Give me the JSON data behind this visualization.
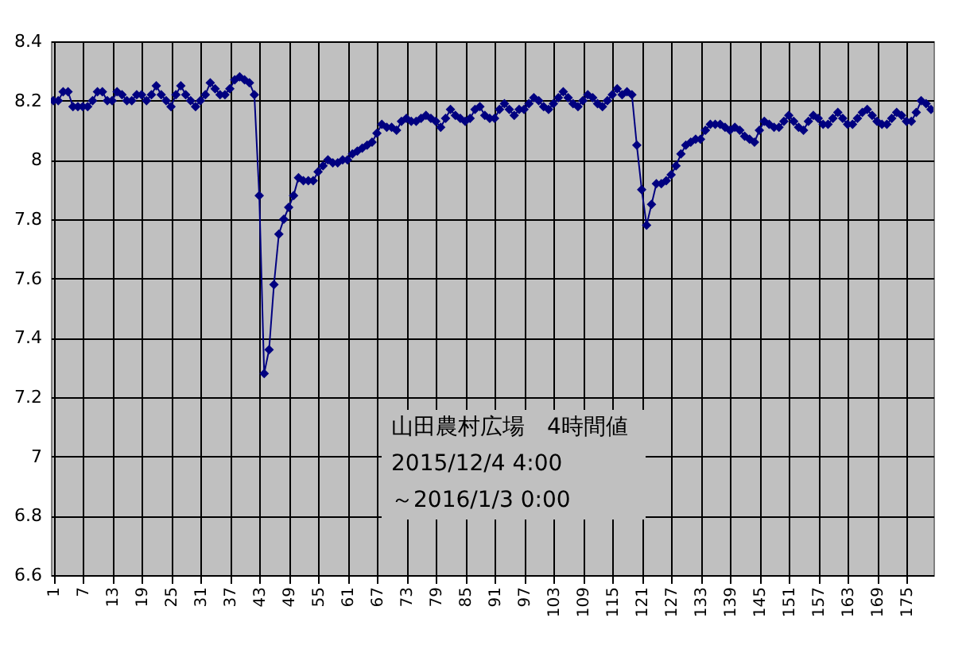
{
  "chart_data": {
    "type": "line",
    "marker": "diamond",
    "line_style": "solid",
    "grid": true,
    "categories": [
      "1",
      null,
      null,
      null,
      null,
      null,
      "7",
      null,
      null,
      null,
      null,
      null,
      "13",
      null,
      null,
      null,
      null,
      null,
      "19",
      null,
      null,
      null,
      null,
      null,
      "25",
      null,
      null,
      null,
      null,
      null,
      "31",
      null,
      null,
      null,
      null,
      null,
      "37",
      null,
      null,
      null,
      null,
      null,
      "43",
      null,
      null,
      null,
      null,
      null,
      "49",
      null,
      null,
      null,
      null,
      null,
      "55",
      null,
      null,
      null,
      null,
      null,
      "61",
      null,
      null,
      null,
      null,
      null,
      "67",
      null,
      null,
      null,
      null,
      null,
      "73",
      null,
      null,
      null,
      null,
      null,
      "79",
      null,
      null,
      null,
      null,
      null,
      "85",
      null,
      null,
      null,
      null,
      null,
      "91",
      null,
      null,
      null,
      null,
      null,
      "97",
      null,
      null,
      null,
      null,
      null,
      "103",
      null,
      null,
      null,
      null,
      null,
      "109",
      null,
      null,
      null,
      null,
      null,
      "115",
      null,
      null,
      null,
      null,
      null,
      "121",
      null,
      null,
      null,
      null,
      null,
      "127",
      null,
      null,
      null,
      null,
      null,
      "133",
      null,
      null,
      null,
      null,
      null,
      "139",
      null,
      null,
      null,
      null,
      null,
      "145",
      null,
      null,
      null,
      null,
      null,
      "151",
      null,
      null,
      null,
      null,
      null,
      "157",
      null,
      null,
      null,
      null,
      null,
      "163",
      null,
      null,
      null,
      null,
      null,
      "169",
      null,
      null,
      null,
      null,
      null,
      "175",
      null,
      null,
      null,
      null,
      null
    ],
    "ylim": [
      6.6,
      8.4
    ],
    "yticks": [
      6.6,
      6.8,
      7,
      7.2,
      7.4,
      7.6,
      7.8,
      8,
      8.2,
      8.4
    ],
    "annotations": [
      "山田農村広場　4時間値",
      "2015/12/4 4:00",
      "～2016/1/3 0:00"
    ],
    "series": [
      {
        "color": "#000080",
        "values": [
          8.2,
          8.2,
          8.23,
          8.23,
          8.18,
          8.18,
          8.18,
          8.18,
          8.2,
          8.23,
          8.23,
          8.2,
          8.2,
          8.23,
          8.22,
          8.2,
          8.2,
          8.22,
          8.22,
          8.2,
          8.22,
          8.25,
          8.22,
          8.2,
          8.18,
          8.22,
          8.25,
          8.22,
          8.2,
          8.18,
          8.2,
          8.22,
          8.26,
          8.24,
          8.22,
          8.22,
          8.24,
          8.27,
          8.28,
          8.27,
          8.26,
          8.22,
          7.88,
          7.28,
          7.36,
          7.58,
          7.75,
          7.8,
          7.84,
          7.88,
          7.94,
          7.93,
          7.93,
          7.93,
          7.96,
          7.98,
          8.0,
          7.99,
          7.99,
          8.0,
          8.0,
          8.02,
          8.03,
          8.04,
          8.05,
          8.06,
          8.09,
          8.12,
          8.11,
          8.11,
          8.1,
          8.13,
          8.14,
          8.13,
          8.13,
          8.14,
          8.15,
          8.14,
          8.13,
          8.11,
          8.14,
          8.17,
          8.15,
          8.14,
          8.13,
          8.14,
          8.17,
          8.18,
          8.15,
          8.14,
          8.14,
          8.17,
          8.19,
          8.17,
          8.15,
          8.17,
          8.17,
          8.19,
          8.21,
          8.2,
          8.18,
          8.17,
          8.19,
          8.21,
          8.23,
          8.21,
          8.19,
          8.18,
          8.2,
          8.22,
          8.21,
          8.19,
          8.18,
          8.2,
          8.22,
          8.24,
          8.22,
          8.23,
          8.22,
          8.05,
          7.9,
          7.78,
          7.85,
          7.92,
          7.92,
          7.93,
          7.95,
          7.98,
          8.02,
          8.05,
          8.06,
          8.07,
          8.07,
          8.1,
          8.12,
          8.12,
          8.12,
          8.11,
          8.1,
          8.11,
          8.1,
          8.08,
          8.07,
          8.06,
          8.1,
          8.13,
          8.12,
          8.11,
          8.11,
          8.13,
          8.15,
          8.13,
          8.11,
          8.1,
          8.13,
          8.15,
          8.14,
          8.12,
          8.12,
          8.14,
          8.16,
          8.14,
          8.12,
          8.12,
          8.14,
          8.16,
          8.17,
          8.15,
          8.13,
          8.12,
          8.12,
          8.14,
          8.16,
          8.15,
          8.13,
          8.13,
          8.16,
          8.2,
          8.19,
          8.17
        ]
      }
    ]
  }
}
